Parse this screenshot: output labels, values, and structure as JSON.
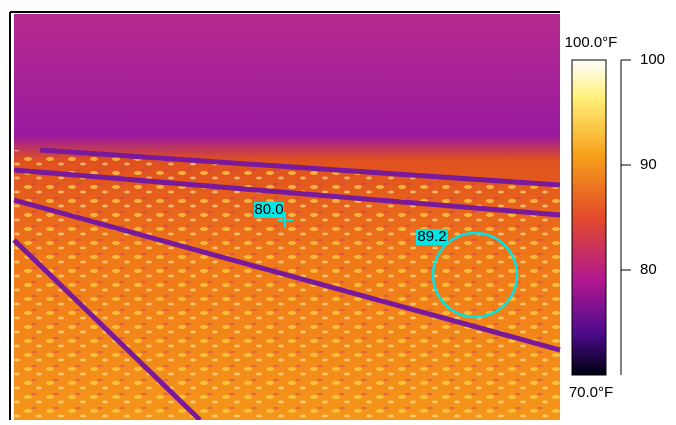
{
  "colorbar": {
    "max_label": "100.0°F",
    "min_label": "70.0°F",
    "range": [
      70,
      100
    ],
    "ticks": [
      100,
      90,
      80
    ]
  },
  "measurements": [
    {
      "label": "80.0"
    },
    {
      "label": "89.2"
    }
  ]
}
